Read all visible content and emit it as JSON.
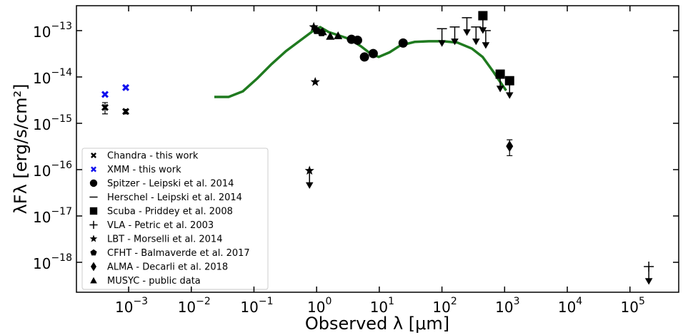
{
  "chart_data": {
    "type": "scatter",
    "x_label": "Observed λ [μm]",
    "y_label": "λFλ [erg/s/cm²]",
    "xscale": "log",
    "yscale": "log",
    "xlim": [
      0.000147,
      600000
    ],
    "ylim": [
      2.26e-19,
      3.45e-13
    ],
    "xticks": [
      {
        "value": 0.001,
        "label": "10−3"
      },
      {
        "value": 0.01,
        "label": "10−2"
      },
      {
        "value": 0.1,
        "label": "10−1"
      },
      {
        "value": 1,
        "label": "100"
      },
      {
        "value": 10,
        "label": "101"
      },
      {
        "value": 100,
        "label": "102"
      },
      {
        "value": 1000,
        "label": "103"
      },
      {
        "value": 10000,
        "label": "104"
      },
      {
        "value": 100000,
        "label": "105"
      }
    ],
    "yticks": [
      {
        "value": 1e-18,
        "label": "10−18"
      },
      {
        "value": 1e-17,
        "label": "10−17"
      },
      {
        "value": 1e-16,
        "label": "10−16"
      },
      {
        "value": 1e-15,
        "label": "10−15"
      },
      {
        "value": 1e-14,
        "label": "10−14"
      },
      {
        "value": 1e-13,
        "label": "10−13"
      }
    ],
    "legend_position": "lower left",
    "series": [
      {
        "name": "Chandra - this work",
        "marker": "x",
        "color": "#000000",
        "x": [
          0.00042,
          0.0009
        ],
        "values": [
          2.2e-15,
          1.8e-15
        ],
        "errors": [
          6e-16,
          2e-16
        ]
      },
      {
        "name": "XMM - this work",
        "marker": "x",
        "color": "#1010ee",
        "x": [
          0.00042,
          0.0009
        ],
        "values": [
          4.2e-15,
          5.9e-15
        ]
      },
      {
        "name": "Spitzer - Leipski et al. 2014",
        "marker": "circle",
        "color": "#000000",
        "x": [
          3.6,
          4.5,
          5.8,
          8.0,
          24
        ],
        "values": [
          6.5e-14,
          6.2e-14,
          2.7e-14,
          3.2e-14,
          5.4e-14
        ]
      },
      {
        "name": "Herschel - Leipski et al. 2014",
        "marker": "hline",
        "color": "#000000",
        "x": [
          100,
          160,
          250,
          350,
          500
        ],
        "values": [
          1.1e-13,
          1.2e-13,
          1.9e-13,
          1.2e-13,
          1e-13
        ],
        "upper_limits": [
          true,
          true,
          true,
          true,
          true
        ]
      },
      {
        "name": "Scuba - Priddey et al. 2008",
        "marker": "square",
        "color": "#000000",
        "x": [
          450,
          850,
          1200
        ],
        "values": [
          2.1e-13,
          1.15e-14,
          8.3e-15
        ],
        "upper_limits": [
          true,
          true,
          true
        ]
      },
      {
        "name": "VLA - Petric et al. 2003",
        "marker": "plus",
        "color": "#000000",
        "x": [
          200000
        ],
        "values": [
          8.1e-19
        ],
        "upper_limits": [
          true
        ]
      },
      {
        "name": "LBT - Morselli et al. 2014",
        "marker": "star",
        "color": "#000000",
        "x": [
          0.9,
          0.95,
          0.77
        ],
        "values": [
          1.2e-13,
          7.8e-15,
          9.5e-17
        ],
        "upper_limits": [
          false,
          false,
          true
        ]
      },
      {
        "name": "CFHT - Balmaverde et al. 2017",
        "marker": "pentagon",
        "color": "#000000",
        "x": [
          1.0,
          1.2
        ],
        "values": [
          1e-13,
          9e-14
        ]
      },
      {
        "name": "ALMA - Decarli et al. 2018",
        "marker": "diamond",
        "color": "#000000",
        "x": [
          1200
        ],
        "values": [
          3.2e-16
        ],
        "errors": [
          1.2e-16
        ]
      },
      {
        "name": "MUSYC - public data",
        "marker": "triangle",
        "color": "#000000",
        "x": [
          1.25,
          1.65,
          2.2
        ],
        "values": [
          9.5e-14,
          7.6e-14,
          7.8e-14
        ]
      }
    ],
    "model": {
      "color": "#1f7a1f",
      "x": [
        0.0233,
        0.0394,
        0.0667,
        0.113,
        0.191,
        0.323,
        0.546,
        0.925,
        1.14,
        1.56,
        2.32,
        3.44,
        5.1,
        7.2,
        9.8,
        14.6,
        21.7,
        36.7,
        62,
        105,
        177,
        300,
        445,
        660,
        930,
        1060
      ],
      "values": [
        3.7e-15,
        3.7e-15,
        4.9e-15,
        9.3e-15,
        1.9e-14,
        3.6e-14,
        6.1e-14,
        1.04e-13,
        1.19e-13,
        9.3e-14,
        7.8e-14,
        6.5e-14,
        4.6e-14,
        3.2e-14,
        2.7e-14,
        3.4e-14,
        4.8e-14,
        5.7e-14,
        5.9e-14,
        5.9e-14,
        5.5e-14,
        4.1e-14,
        2.7e-14,
        1.3e-14,
        6.5e-15,
        5.1e-15
      ]
    }
  }
}
